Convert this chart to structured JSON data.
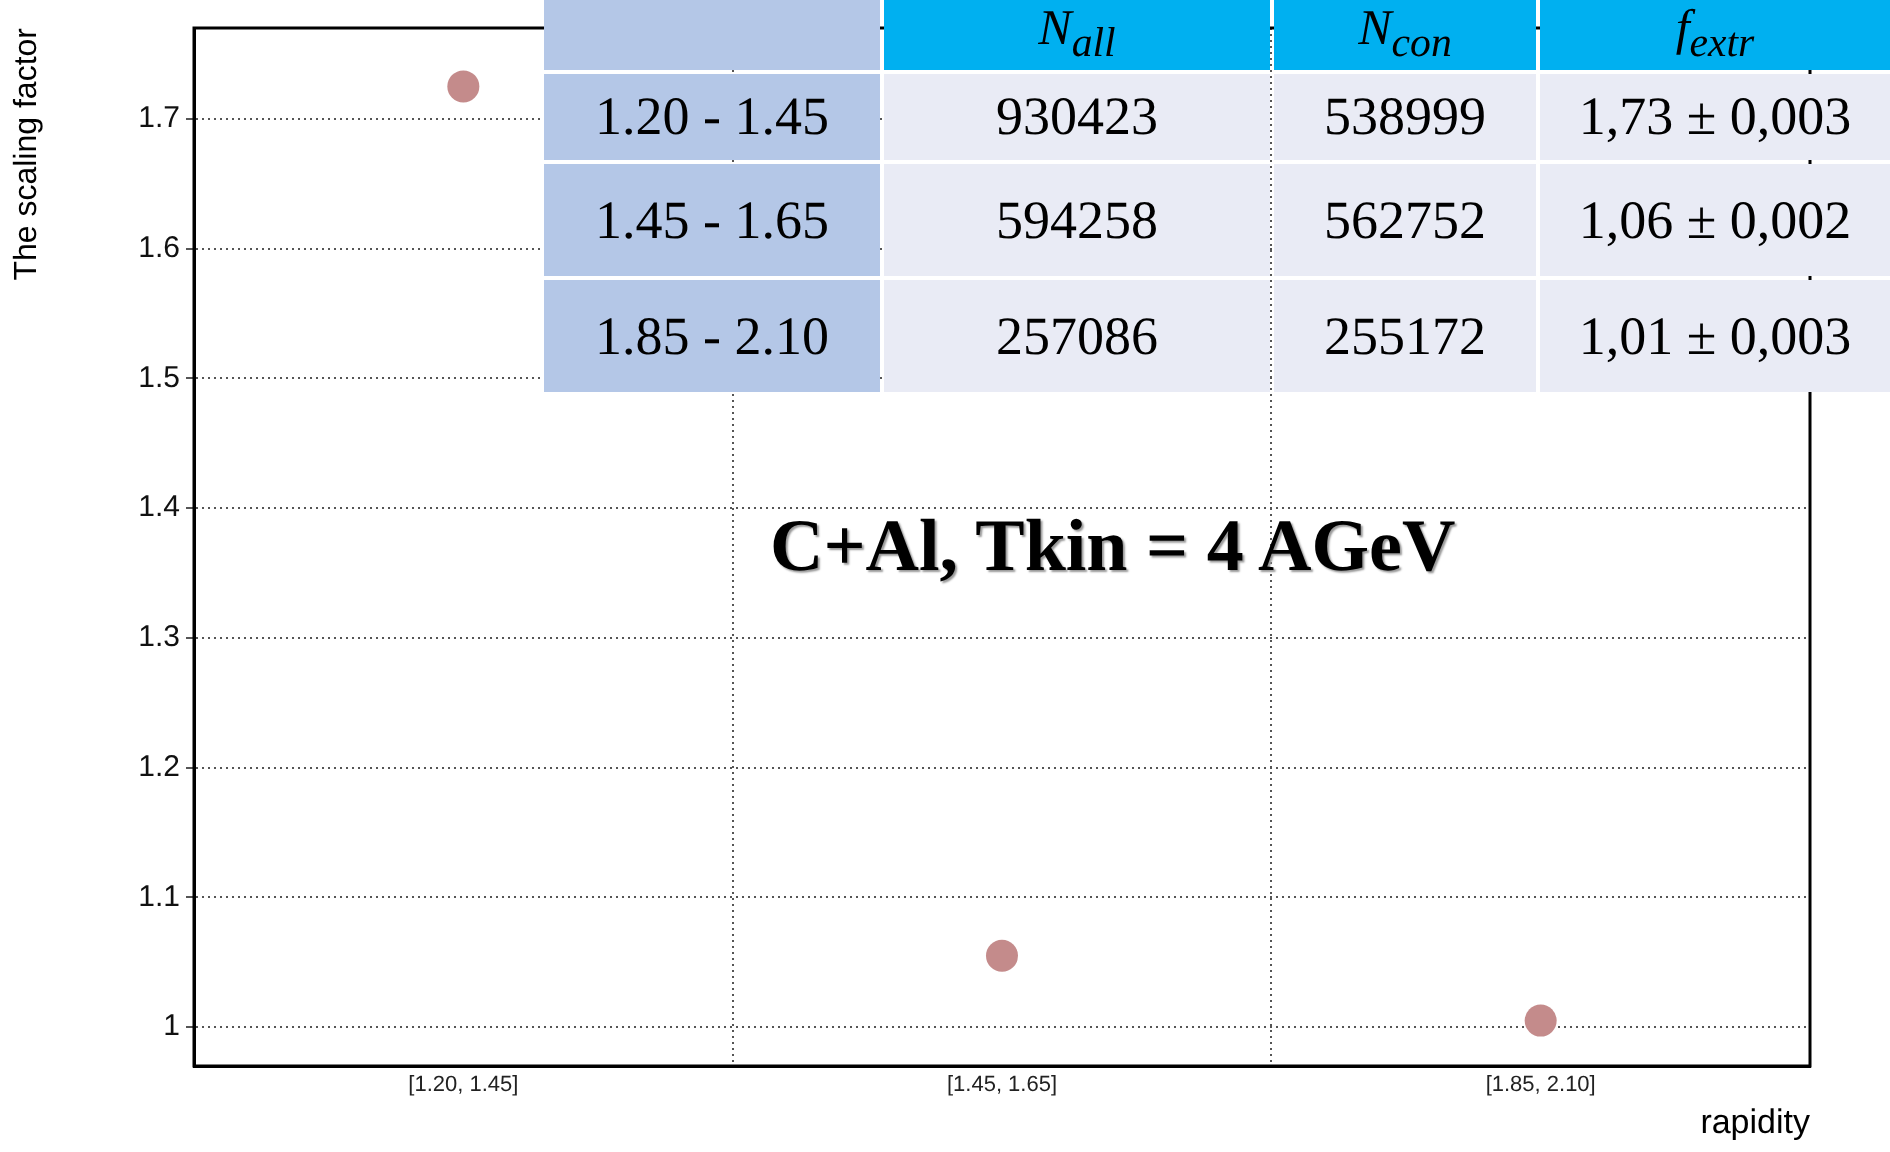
{
  "chart_data": [
    {
      "type": "scatter",
      "xlabel": "rapidity",
      "ylabel": "The scaling factor",
      "categories": [
        "[1.20, 1.45]",
        "[1.45, 1.65]",
        "[1.85, 2.10]"
      ],
      "series": [
        {
          "color": "#c48b8b",
          "values": [
            1.725,
            1.055,
            1.005
          ]
        }
      ],
      "ylim": [
        0.97,
        1.77
      ],
      "yticks": [
        1,
        1.1,
        1.2,
        1.3,
        1.4,
        1.5,
        1.6,
        1.7
      ],
      "grid": true,
      "legend": false,
      "marker": "circle",
      "annotations": [
        "C+Al, Tkin = 4 AGeV"
      ]
    },
    {
      "type": "other",
      "data_labels": true,
      "categories": [
        "1.20 - 1.45",
        "1.45 - 1.65",
        "1.85 - 2.10"
      ],
      "series": [
        {
          "name": "N$_{all}$",
          "values": [
            930423,
            594258,
            257086
          ]
        },
        {
          "name": "N$_{con}$",
          "values": [
            538999,
            562752,
            255172
          ]
        },
        {
          "name": "f$_{extr}$",
          "values": [
            1.73,
            1.06,
            1.01
          ],
          "value_labels": [
            "1,73 ± 0,003",
            "1,06 ± 0,002",
            "1,01 ± 0,003"
          ]
        }
      ]
    }
  ]
}
